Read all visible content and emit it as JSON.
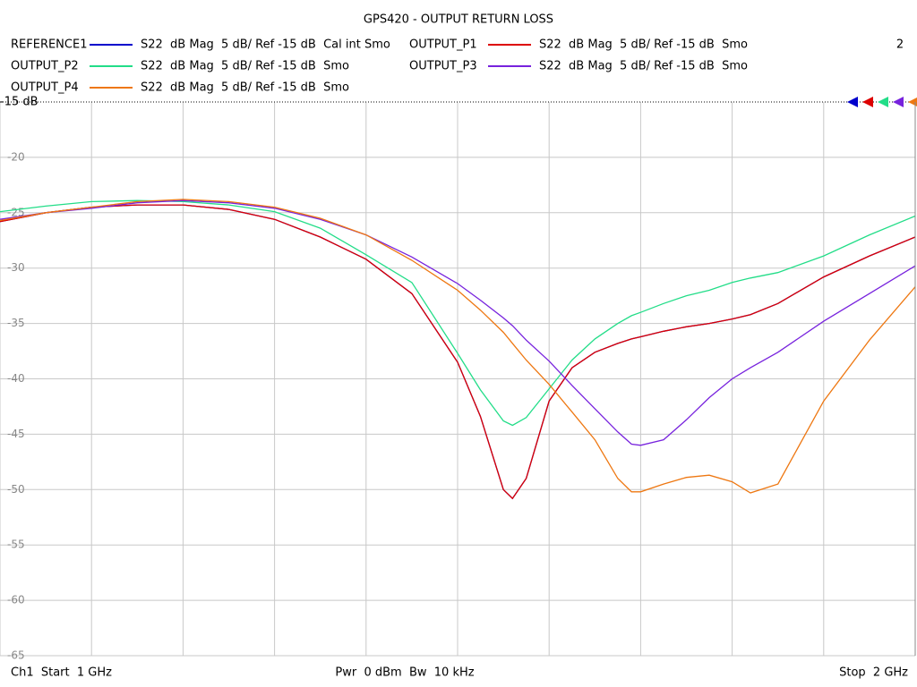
{
  "chart_data": {
    "type": "line",
    "title": "GPS420 - OUTPUT RETURN LOSS",
    "window_label": "2",
    "footer": [
      "Ch1  Start  1 GHz",
      "Pwr  0 dBm  Bw  10 kHz",
      "Stop  2 GHz"
    ],
    "xlim": [
      1,
      2
    ],
    "xticks": [
      1,
      1.1,
      1.2,
      1.3,
      1.4,
      1.5,
      1.6,
      1.7,
      1.8,
      1.9,
      2
    ],
    "ylim": [
      -65,
      -15
    ],
    "yticks": [
      {
        "value": -15,
        "label": "-15 dB"
      },
      -20,
      -25,
      -30,
      -35,
      -40,
      -45,
      -50,
      -55,
      -60,
      -65
    ],
    "grid": true,
    "x": [
      1.0,
      1.05,
      1.1,
      1.15,
      1.2,
      1.25,
      1.3,
      1.35,
      1.4,
      1.45,
      1.5,
      1.525,
      1.55,
      1.56,
      1.575,
      1.6,
      1.625,
      1.65,
      1.675,
      1.69,
      1.7,
      1.725,
      1.75,
      1.775,
      1.8,
      1.82,
      1.85,
      1.9,
      1.95,
      2.0
    ],
    "series": [
      {
        "name": "REFERENCE1",
        "description": "S22  dB Mag  5 dB/ Ref -15 dB  Cal int Smo",
        "color": "#0000cc",
        "values": [
          -25.8,
          -25.0,
          -24.5,
          -24.3,
          -24.3,
          -24.7,
          -25.6,
          -27.2,
          -29.2,
          -32.3,
          -38.5,
          -43.4,
          -50.0,
          -50.8,
          -49.0,
          -42.0,
          -39.0,
          -37.6,
          -36.8,
          -36.4,
          -36.2,
          -35.7,
          -35.3,
          -35.0,
          -34.6,
          -34.2,
          -33.2,
          -30.8,
          -28.9,
          -27.2
        ]
      },
      {
        "name": "OUTPUT_P1",
        "description": "S22  dB Mag  5 dB/ Ref -15 dB  Smo",
        "color": "#dd0000",
        "values": [
          -25.8,
          -25.0,
          -24.5,
          -24.3,
          -24.3,
          -24.7,
          -25.6,
          -27.2,
          -29.2,
          -32.3,
          -38.5,
          -43.4,
          -50.0,
          -50.8,
          -49.0,
          -42.0,
          -39.0,
          -37.6,
          -36.8,
          -36.4,
          -36.2,
          -35.7,
          -35.3,
          -35.0,
          -34.6,
          -34.2,
          -33.2,
          -30.8,
          -28.9,
          -27.2
        ]
      },
      {
        "name": "OUTPUT_P2",
        "description": "S22  dB Mag  5 dB/ Ref -15 dB  Smo",
        "color": "#22dd88",
        "values": [
          -24.9,
          -24.4,
          -24.0,
          -23.9,
          -24.0,
          -24.3,
          -24.9,
          -26.4,
          -28.8,
          -31.3,
          -37.7,
          -41.0,
          -43.8,
          -44.2,
          -43.5,
          -40.9,
          -38.3,
          -36.4,
          -35.0,
          -34.3,
          -34.0,
          -33.2,
          -32.5,
          -32.0,
          -31.3,
          -30.9,
          -30.4,
          -28.9,
          -27.0,
          -25.3
        ]
      },
      {
        "name": "OUTPUT_P3",
        "description": "S22  dB Mag  5 dB/ Ref -15 dB  Smo",
        "color": "#7722dd",
        "values": [
          -25.6,
          -25.0,
          -24.6,
          -24.1,
          -23.9,
          -24.1,
          -24.6,
          -25.6,
          -27.0,
          -29.0,
          -31.4,
          -32.9,
          -34.5,
          -35.2,
          -36.5,
          -38.4,
          -40.6,
          -42.7,
          -44.8,
          -45.9,
          -46.0,
          -45.5,
          -43.7,
          -41.7,
          -40.0,
          -39.0,
          -37.6,
          -34.8,
          -32.3,
          -29.8
        ]
      },
      {
        "name": "OUTPUT_P4",
        "description": "S22  dB Mag  5 dB/ Ref -15 dB  Smo",
        "color": "#ee7711",
        "values": [
          -25.7,
          -25.0,
          -24.5,
          -24.0,
          -23.8,
          -24.0,
          -24.5,
          -25.5,
          -27.0,
          -29.3,
          -32.0,
          -33.8,
          -35.8,
          -36.8,
          -38.3,
          -40.5,
          -43.0,
          -45.5,
          -49.0,
          -50.2,
          -50.2,
          -49.5,
          -48.9,
          -48.7,
          -49.3,
          -50.3,
          -49.5,
          -42.0,
          -36.5,
          -31.7
        ]
      }
    ]
  }
}
